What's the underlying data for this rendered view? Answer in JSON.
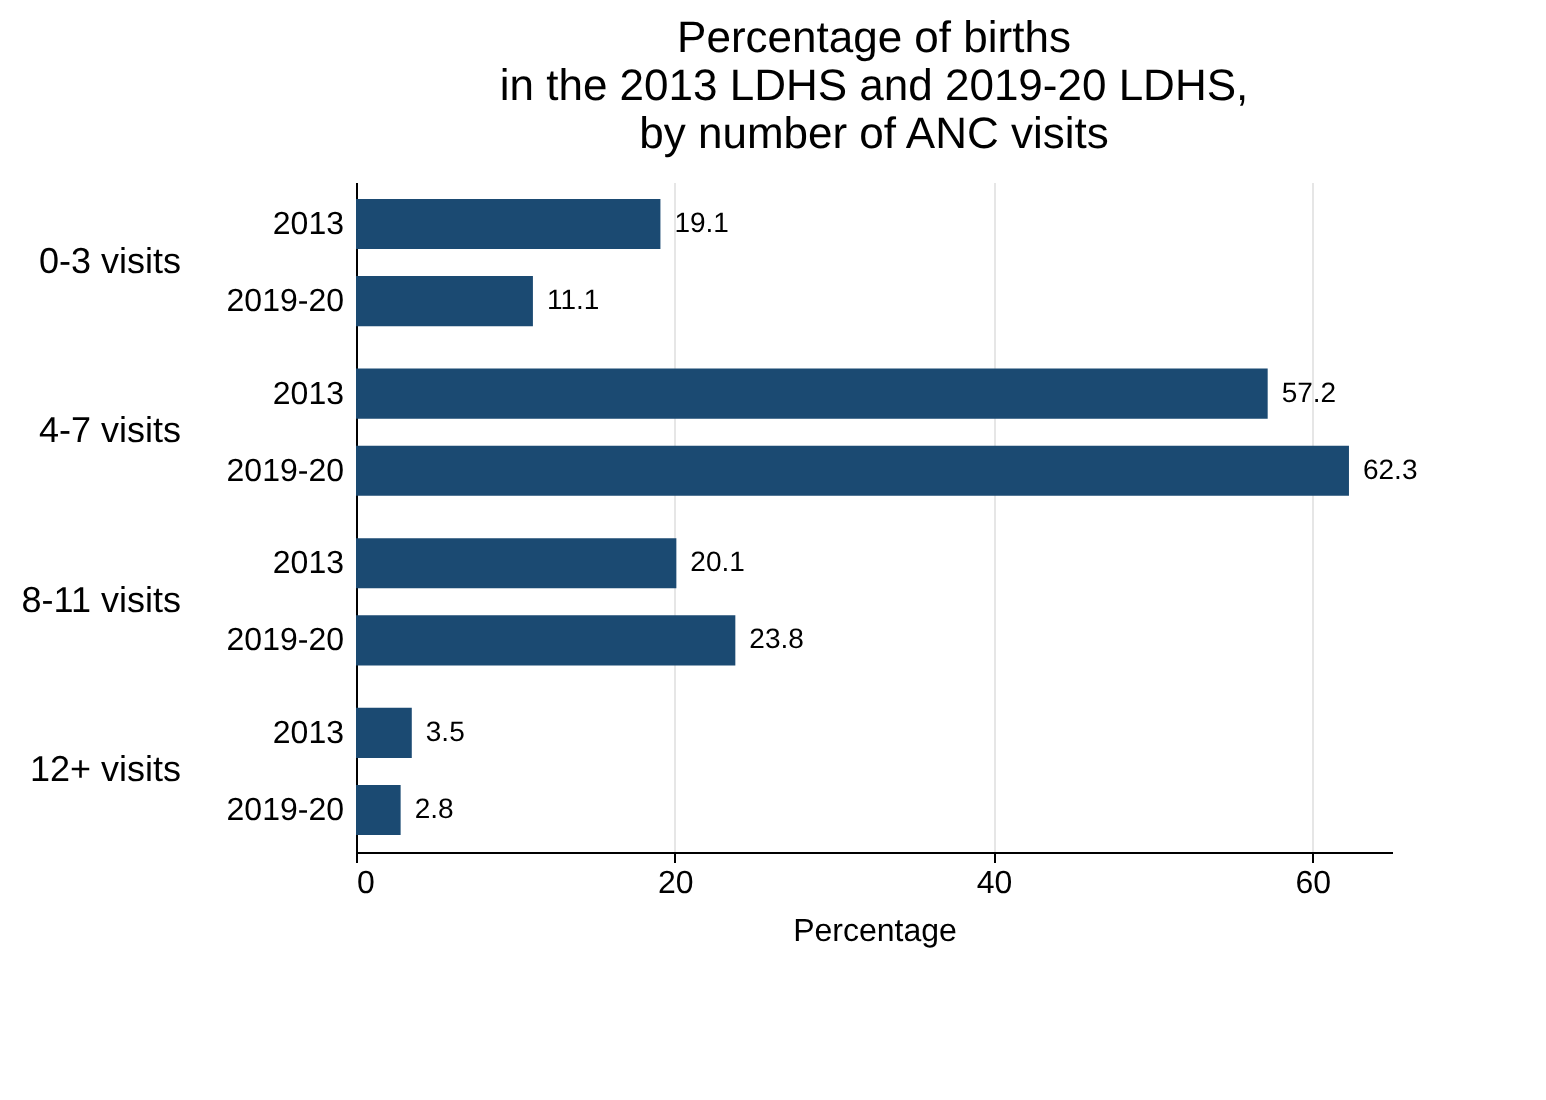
{
  "chart_data": {
    "type": "bar",
    "orientation": "horizontal",
    "title": "Percentage of births\nin the 2013 LDHS and 2019-20 LDHS,\nby number of ANC visits",
    "xlabel": "Percentage",
    "categories": [
      "0-3 visits",
      "4-7 visits",
      "8-11 visits",
      "12+ visits"
    ],
    "series": [
      {
        "name": "2013",
        "color": "#1b4a72",
        "values": [
          19.1,
          57.2,
          20.1,
          3.5
        ]
      },
      {
        "name": "2019-20",
        "color": "#1b4a72",
        "values": [
          11.1,
          62.3,
          23.8,
          2.8
        ]
      }
    ],
    "xlim": [
      0,
      65
    ],
    "xticks": [
      0,
      20,
      40,
      60
    ],
    "grid": "x",
    "data_labels": true,
    "legend": false
  }
}
